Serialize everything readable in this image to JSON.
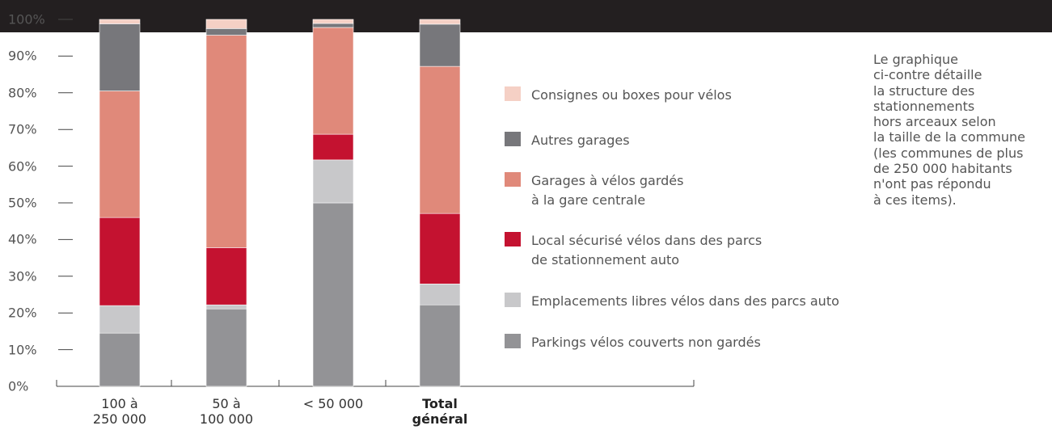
{
  "chart_data": {
    "type": "stacked_bar",
    "categories": [
      "100 à\n250 000",
      "50 à\n100 000",
      "< 50 000",
      "Total\ngénéral"
    ],
    "series": [
      {
        "name": "Parkings vélos couverts non gardés",
        "color": "#939396",
        "values": [
          14.5,
          21.1,
          50,
          22.2
        ]
      },
      {
        "name": "Emplacements libres vélos dans des parcs auto",
        "color": "#c8c8ca",
        "values": [
          7.5,
          1.1,
          11.7,
          5.7
        ]
      },
      {
        "name": "Local sécurisé vélos dans des parcs\nde stationnement auto",
        "color": "#c41230",
        "values": [
          24,
          15.6,
          7,
          19.2
        ]
      },
      {
        "name": "Garages à vélos gardés\nà la gare centrale",
        "color": "#e0897a",
        "values": [
          34.5,
          57.9,
          29.1,
          40.1
        ]
      },
      {
        "name": "Autres garages",
        "color": "#77777b",
        "values": [
          18.3,
          1.8,
          1.1,
          11.5
        ]
      },
      {
        "name": "Consignes ou boxes pour vélos",
        "color": "#f5d0c5",
        "values": [
          1.2,
          2.5,
          1.1,
          1.3
        ]
      }
    ],
    "ylim": [
      0,
      100
    ],
    "yticks": [
      {
        "value": 0,
        "label": "0%"
      },
      {
        "value": 10,
        "label": "10%"
      },
      {
        "value": 20,
        "label": "20%"
      },
      {
        "value": 30,
        "label": "30%"
      },
      {
        "value": 40,
        "label": "40%"
      },
      {
        "value": 50,
        "label": "50%"
      },
      {
        "value": 60,
        "label": "60%"
      },
      {
        "value": 70,
        "label": "70%"
      },
      {
        "value": 80,
        "label": "80%"
      },
      {
        "value": 90,
        "label": "90%"
      },
      {
        "value": 100,
        "label": "100%"
      }
    ],
    "note": [
      "Le graphique",
      "ci-contre détaille",
      "la structure des",
      "stationnements",
      "hors arceaux selon",
      "la taille de la commune",
      "(les communes de plus",
      "de 250 000 habitants",
      "n'ont pas répondu",
      "à ces items)."
    ]
  }
}
